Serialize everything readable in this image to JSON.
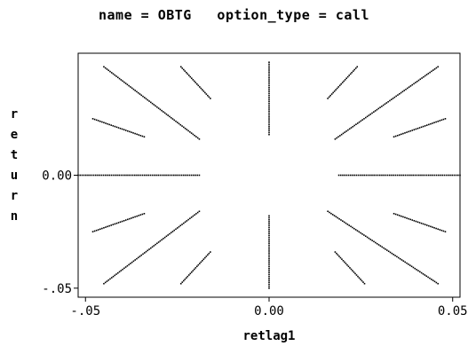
{
  "header": {
    "by_group": "name = OBTG   option_type = call"
  },
  "chart_data": {
    "type": "scatter",
    "title": "name = OBTG   option_type = call",
    "xlabel": "retlag1",
    "ylabel": "return",
    "xlim": [
      -0.052,
      0.052
    ],
    "ylim": [
      -0.054,
      0.054
    ],
    "x_ticks": [
      {
        "value": -0.05,
        "label": "-.05"
      },
      {
        "value": 0.0,
        "label": "0.00"
      },
      {
        "value": 0.05,
        "label": "0.05"
      }
    ],
    "y_ticks": [
      {
        "value": -0.05,
        "label": "-.05"
      },
      {
        "value": 0.0,
        "label": "0.00"
      }
    ],
    "grid": false,
    "marker_color": "#000000",
    "series": [
      {
        "segments": [
          {
            "from": [
              -0.052,
              0.0
            ],
            "to": [
              -0.019,
              0.0
            ]
          },
          {
            "from": [
              0.019,
              0.0
            ],
            "to": [
              0.052,
              0.0
            ]
          },
          {
            "from": [
              0.0,
              0.05
            ],
            "to": [
              0.0,
              0.018
            ]
          },
          {
            "from": [
              0.0,
              -0.018
            ],
            "to": [
              0.0,
              -0.05
            ]
          },
          {
            "from": [
              -0.045,
              0.048
            ],
            "to": [
              -0.019,
              0.016
            ]
          },
          {
            "from": [
              -0.048,
              0.025
            ],
            "to": [
              -0.034,
              0.017
            ]
          },
          {
            "from": [
              -0.024,
              0.048
            ],
            "to": [
              -0.016,
              0.034
            ]
          },
          {
            "from": [
              0.018,
              0.016
            ],
            "to": [
              0.046,
              0.048
            ]
          },
          {
            "from": [
              0.034,
              0.017
            ],
            "to": [
              0.048,
              0.025
            ]
          },
          {
            "from": [
              0.016,
              0.034
            ],
            "to": [
              0.024,
              0.048
            ]
          },
          {
            "from": [
              -0.048,
              -0.025
            ],
            "to": [
              -0.034,
              -0.017
            ]
          },
          {
            "from": [
              -0.045,
              -0.048
            ],
            "to": [
              -0.019,
              -0.016
            ]
          },
          {
            "from": [
              -0.024,
              -0.048
            ],
            "to": [
              -0.016,
              -0.034
            ]
          },
          {
            "from": [
              0.016,
              -0.016
            ],
            "to": [
              0.046,
              -0.048
            ]
          },
          {
            "from": [
              0.034,
              -0.017
            ],
            "to": [
              0.048,
              -0.025
            ]
          },
          {
            "from": [
              0.018,
              -0.034
            ],
            "to": [
              0.026,
              -0.048
            ]
          }
        ]
      }
    ]
  }
}
